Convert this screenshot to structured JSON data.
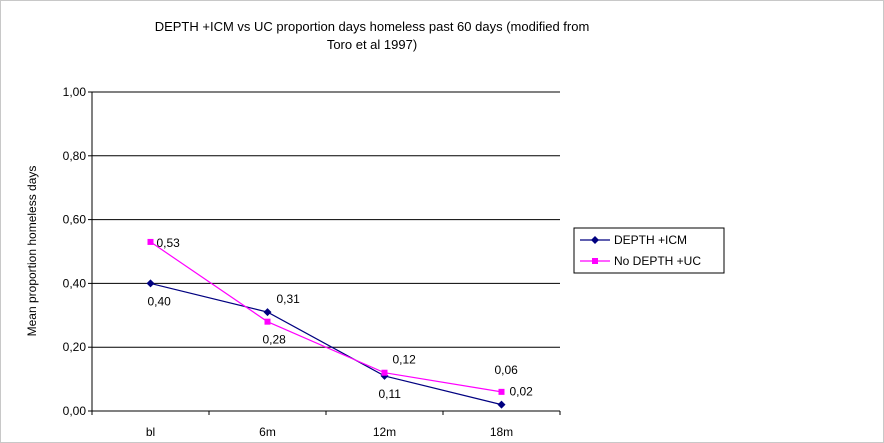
{
  "chart_data": {
    "type": "line",
    "title_lines": [
      "DEPTH +ICM vs UC proportion days homeless past 60 days (modified from",
      "Toro et al 1997)"
    ],
    "xlabel": "",
    "ylabel": "Mean proportion homeless days",
    "categories": [
      "bl",
      "6m",
      "12m",
      "18m"
    ],
    "ylim": [
      0,
      1
    ],
    "yticks": [
      "0,00",
      "0,20",
      "0,40",
      "0,60",
      "0,80",
      "1,00"
    ],
    "grid": "horizontal",
    "legend_position": "right",
    "series": [
      {
        "name": "DEPTH +ICM",
        "color": "#000080",
        "marker": "diamond",
        "values": [
          0.4,
          0.31,
          0.11,
          0.02
        ],
        "labels": [
          "0,40",
          "0,31",
          "0,11",
          "0,02"
        ]
      },
      {
        "name": "No DEPTH +UC",
        "color": "#ff00ff",
        "marker": "square",
        "values": [
          0.53,
          0.28,
          0.12,
          0.06
        ],
        "labels": [
          "0,53",
          "0,28",
          "0,12",
          "0,06"
        ]
      }
    ]
  }
}
